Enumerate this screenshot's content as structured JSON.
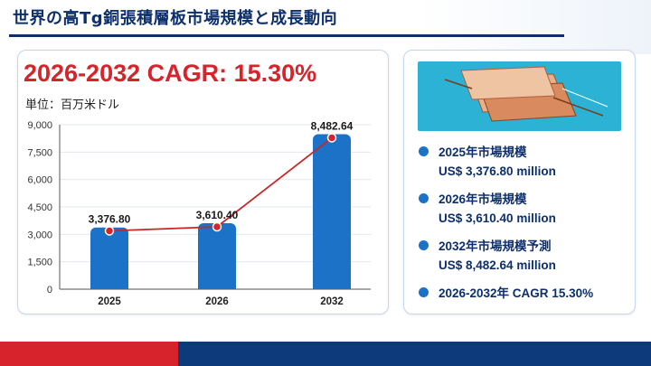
{
  "header": {
    "title": "世界の高Tg銅張積層板市場規模と成長動向"
  },
  "chart_panel": {
    "headline": "2026-2032 CAGR: 15.30%",
    "unit": "単位：百万米ドル"
  },
  "chart_data": {
    "type": "bar",
    "categories": [
      "2025",
      "2026",
      "2032"
    ],
    "values": [
      3376.8,
      3610.4,
      8482.64
    ],
    "value_labels": [
      "3,376.80",
      "3,610.40",
      "8,482.64"
    ],
    "ylim": [
      0,
      9000
    ],
    "yticks": [
      0,
      1500,
      3000,
      4500,
      6000,
      7500,
      9000
    ],
    "ytick_labels": [
      "0",
      "1,500",
      "3,000",
      "4,500",
      "6,000",
      "7,500",
      "9,000"
    ],
    "overlay_line": true,
    "grid": true,
    "colors": {
      "bar": "#1b72c6",
      "line": "#c62828",
      "marker": "#d7232b"
    }
  },
  "stats": [
    {
      "label": "2025年市場規模",
      "value": "US$ 3,376.80 million"
    },
    {
      "label": "2026年市場規模",
      "value": "US$ 3,610.40 million"
    },
    {
      "label": "2032年市場規模予測",
      "value": "US$ 8,482.64 million"
    },
    {
      "label": "2026-2032年 CAGR 15.30%",
      "value": ""
    }
  ],
  "colors": {
    "navy": "#0d2f6b",
    "red": "#d7232b",
    "blue": "#1b72c6",
    "photo_bg": "#2bb2d4"
  },
  "image": {
    "icon": "laminate-sheets-image"
  }
}
